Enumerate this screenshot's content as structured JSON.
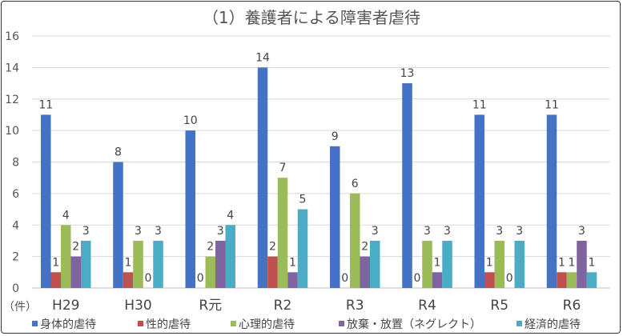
{
  "chart_data": {
    "type": "bar",
    "title": "（1）養護者による障害者虐待",
    "ylabel": "（件）",
    "xlabel": "",
    "ylim": [
      0,
      16
    ],
    "yticks": [
      0,
      2,
      4,
      6,
      8,
      10,
      12,
      14,
      16
    ],
    "grid": true,
    "legend": "bottom",
    "categories": [
      "H29",
      "H30",
      "R元",
      "R2",
      "R3",
      "R4",
      "R5",
      "R6"
    ],
    "series": [
      {
        "name": "身体的虐待",
        "color": "#4472C4",
        "values": [
          11,
          8,
          10,
          14,
          9,
          13,
          11,
          11
        ]
      },
      {
        "name": "性的虐待",
        "color": "#C0504D",
        "values": [
          1,
          1,
          0,
          2,
          0,
          0,
          1,
          1
        ]
      },
      {
        "name": "心理的虐待",
        "color": "#9BBB59",
        "values": [
          4,
          3,
          2,
          7,
          6,
          3,
          3,
          1
        ]
      },
      {
        "name": "放棄・放置（ネグレクト）",
        "color": "#8064A2",
        "values": [
          2,
          0,
          3,
          1,
          2,
          1,
          0,
          3
        ]
      },
      {
        "name": "経済的虐待",
        "color": "#4BACC6",
        "values": [
          3,
          3,
          4,
          5,
          3,
          3,
          3,
          1
        ]
      }
    ]
  }
}
